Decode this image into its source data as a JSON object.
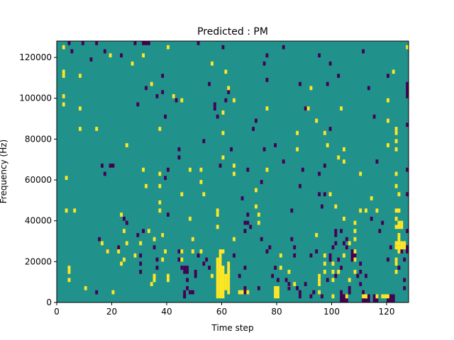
{
  "colors": {
    "background": "#21918c",
    "low": "#440154",
    "high": "#fde725",
    "axis": "#000000"
  },
  "chart_data": {
    "type": "heatmap",
    "title": "Predicted : PM",
    "xlabel": "Time step",
    "ylabel": "Frequency (Hz)",
    "xlim": [
      0,
      128
    ],
    "ylim": [
      0,
      128000
    ],
    "xticks": [
      0,
      20,
      40,
      60,
      80,
      100,
      120
    ],
    "xtick_labels": [
      "0",
      "20",
      "40",
      "60",
      "80",
      "100",
      "120"
    ],
    "yticks": [
      0,
      20000,
      40000,
      60000,
      80000,
      100000,
      120000
    ],
    "ytick_labels": [
      "0",
      "20000",
      "40000",
      "60000",
      "80000",
      "100000",
      "120000"
    ],
    "colormap": "viridis",
    "grid": false,
    "cell_size": {
      "time_steps": 1,
      "frequency_hz": 2000
    },
    "background_level": "mid",
    "high_cells": [
      [
        2,
        96
      ],
      [
        2,
        100
      ],
      [
        2,
        110
      ],
      [
        2,
        112
      ],
      [
        2,
        124
      ],
      [
        3,
        44
      ],
      [
        3,
        60
      ],
      [
        4,
        16
      ],
      [
        4,
        14
      ],
      [
        4,
        10
      ],
      [
        6,
        44
      ],
      [
        8,
        84
      ],
      [
        8,
        110
      ],
      [
        10,
        6
      ],
      [
        14,
        84
      ],
      [
        16,
        28
      ],
      [
        18,
        24
      ],
      [
        19,
        120
      ],
      [
        20,
        4
      ],
      [
        23,
        42
      ],
      [
        22,
        24
      ],
      [
        23,
        18
      ],
      [
        24,
        20
      ],
      [
        24,
        34
      ],
      [
        25,
        28
      ],
      [
        25,
        76
      ],
      [
        27,
        116
      ],
      [
        28,
        22
      ],
      [
        30,
        28
      ],
      [
        31,
        120
      ],
      [
        31,
        64
      ],
      [
        32,
        56
      ],
      [
        33,
        34
      ],
      [
        34,
        106
      ],
      [
        35,
        12
      ],
      [
        35,
        10
      ],
      [
        35,
        30
      ],
      [
        37,
        84
      ],
      [
        37,
        62
      ],
      [
        37,
        56
      ],
      [
        37,
        48
      ],
      [
        37,
        44
      ],
      [
        38,
        32
      ],
      [
        38,
        20
      ],
      [
        39,
        24
      ],
      [
        40,
        12
      ],
      [
        40,
        10
      ],
      [
        40,
        124
      ],
      [
        42,
        100
      ],
      [
        45,
        98
      ],
      [
        45,
        24
      ],
      [
        45,
        20
      ],
      [
        45,
        52
      ],
      [
        48,
        40
      ],
      [
        48,
        64
      ],
      [
        49,
        30
      ],
      [
        49,
        24
      ],
      [
        52,
        64
      ],
      [
        52,
        24
      ],
      [
        52,
        58
      ],
      [
        53,
        52
      ],
      [
        56,
        116
      ],
      [
        56,
        12
      ],
      [
        58,
        44
      ],
      [
        58,
        42
      ],
      [
        58,
        36
      ],
      [
        60,
        92
      ],
      [
        60,
        82
      ],
      [
        60,
        70
      ],
      [
        60,
        24
      ],
      [
        61,
        112
      ],
      [
        62,
        104
      ],
      [
        64,
        98
      ],
      [
        64,
        66
      ],
      [
        64,
        62
      ],
      [
        64,
        30
      ],
      [
        66,
        4
      ],
      [
        67,
        4
      ],
      [
        69,
        4
      ],
      [
        72,
        54
      ],
      [
        72,
        46
      ],
      [
        73,
        42
      ],
      [
        73,
        38
      ],
      [
        76,
        94
      ],
      [
        76,
        64
      ],
      [
        81,
        22
      ],
      [
        81,
        16
      ],
      [
        84,
        14
      ],
      [
        86,
        8
      ],
      [
        87,
        74
      ],
      [
        87,
        82
      ],
      [
        91,
        94
      ],
      [
        92,
        104
      ],
      [
        94,
        88
      ],
      [
        94,
        32
      ],
      [
        95,
        12
      ],
      [
        95,
        10
      ],
      [
        95,
        8
      ],
      [
        95,
        4
      ],
      [
        97,
        14
      ],
      [
        97,
        18
      ],
      [
        97,
        22
      ],
      [
        99,
        52
      ],
      [
        100,
        14
      ],
      [
        100,
        10
      ],
      [
        100,
        18
      ],
      [
        101,
        46
      ],
      [
        102,
        70
      ],
      [
        102,
        14
      ],
      [
        103,
        94
      ],
      [
        104,
        74
      ],
      [
        104,
        40
      ],
      [
        104,
        68
      ],
      [
        104,
        22
      ],
      [
        105,
        2
      ],
      [
        106,
        28
      ],
      [
        106,
        10
      ],
      [
        108,
        38
      ],
      [
        108,
        34
      ],
      [
        108,
        30
      ],
      [
        108,
        24
      ],
      [
        108,
        20
      ],
      [
        108,
        14
      ],
      [
        110,
        44
      ],
      [
        110,
        62
      ],
      [
        112,
        44
      ],
      [
        112,
        2
      ],
      [
        114,
        50
      ],
      [
        116,
        44
      ],
      [
        116,
        2
      ],
      [
        118,
        2
      ],
      [
        120,
        98
      ],
      [
        120,
        88
      ],
      [
        120,
        76
      ],
      [
        122,
        112
      ],
      [
        123,
        84
      ],
      [
        123,
        82
      ],
      [
        123,
        78
      ],
      [
        123,
        74
      ],
      [
        123,
        62
      ],
      [
        123,
        56
      ],
      [
        123,
        44
      ],
      [
        123,
        40
      ],
      [
        123,
        36
      ],
      [
        123,
        28
      ],
      [
        123,
        26
      ],
      [
        123,
        20
      ],
      [
        123,
        18
      ],
      [
        123,
        14
      ],
      [
        124,
        52
      ],
      [
        124,
        44
      ],
      [
        124,
        38
      ],
      [
        124,
        36
      ],
      [
        124,
        28
      ],
      [
        124,
        26
      ],
      [
        124,
        24
      ],
      [
        127,
        124
      ],
      [
        8,
        94
      ],
      [
        97,
        82
      ],
      [
        98,
        76
      ]
    ],
    "high_runs": [
      [
        58,
        2,
        22
      ],
      [
        59,
        2,
        26
      ],
      [
        60,
        2,
        18
      ],
      [
        61,
        6,
        14
      ],
      [
        62,
        4,
        20
      ],
      [
        62,
        12,
        16
      ],
      [
        34,
        8,
        10
      ],
      [
        35,
        10,
        14
      ],
      [
        79,
        2,
        8
      ],
      [
        80,
        2,
        8
      ],
      [
        111,
        2,
        4
      ],
      [
        112,
        2,
        4
      ],
      [
        119,
        2,
        4
      ],
      [
        120,
        2,
        4
      ],
      [
        84,
        8,
        8
      ],
      [
        124,
        30,
        34
      ],
      [
        125,
        36,
        40
      ],
      [
        125,
        26,
        30
      ],
      [
        126,
        26,
        30
      ],
      [
        100,
        2,
        4
      ]
    ],
    "low_cells": [
      [
        4,
        126
      ],
      [
        5,
        122
      ],
      [
        9,
        126
      ],
      [
        12,
        118
      ],
      [
        14,
        126
      ],
      [
        14,
        4
      ],
      [
        15,
        30
      ],
      [
        16,
        66
      ],
      [
        17,
        62
      ],
      [
        17,
        122
      ],
      [
        18,
        24
      ],
      [
        19,
        66
      ],
      [
        20,
        66
      ],
      [
        22,
        26
      ],
      [
        23,
        120
      ],
      [
        24,
        40
      ],
      [
        25,
        38
      ],
      [
        28,
        126
      ],
      [
        29,
        96
      ],
      [
        29,
        32
      ],
      [
        30,
        18
      ],
      [
        30,
        14
      ],
      [
        30,
        22
      ],
      [
        31,
        126
      ],
      [
        31,
        34
      ],
      [
        32,
        126
      ],
      [
        32,
        104
      ],
      [
        33,
        126
      ],
      [
        35,
        26
      ],
      [
        36,
        20
      ],
      [
        36,
        16
      ],
      [
        36,
        100
      ],
      [
        38,
        110
      ],
      [
        38,
        102
      ],
      [
        38,
        32
      ],
      [
        39,
        90
      ],
      [
        39,
        60
      ],
      [
        40,
        42
      ],
      [
        40,
        64
      ],
      [
        43,
        98
      ],
      [
        44,
        70
      ],
      [
        44,
        24
      ],
      [
        44,
        20
      ],
      [
        44,
        74
      ],
      [
        45,
        16
      ],
      [
        46,
        4
      ],
      [
        46,
        2
      ],
      [
        47,
        6
      ],
      [
        46,
        2
      ],
      [
        47,
        10
      ],
      [
        48,
        4
      ],
      [
        49,
        4
      ],
      [
        50,
        14
      ],
      [
        50,
        12
      ],
      [
        51,
        126
      ],
      [
        51,
        22
      ],
      [
        53,
        78
      ],
      [
        53,
        18
      ],
      [
        54,
        20
      ],
      [
        55,
        16
      ],
      [
        55,
        106
      ],
      [
        57,
        96
      ],
      [
        57,
        94
      ],
      [
        58,
        90
      ],
      [
        59,
        66
      ],
      [
        60,
        124
      ],
      [
        61,
        98
      ],
      [
        62,
        102
      ],
      [
        63,
        74
      ],
      [
        64,
        22
      ],
      [
        66,
        12
      ],
      [
        67,
        50
      ],
      [
        68,
        34
      ],
      [
        68,
        16
      ],
      [
        68,
        4
      ],
      [
        68,
        6
      ],
      [
        69,
        64
      ],
      [
        69,
        42
      ],
      [
        70,
        36
      ],
      [
        71,
        84
      ],
      [
        72,
        88
      ],
      [
        73,
        6
      ],
      [
        74,
        58
      ],
      [
        74,
        30
      ],
      [
        75,
        74
      ],
      [
        76,
        24
      ],
      [
        77,
        26
      ],
      [
        78,
        12
      ],
      [
        79,
        76
      ],
      [
        79,
        16
      ],
      [
        80,
        10
      ],
      [
        82,
        124
      ],
      [
        82,
        68
      ],
      [
        83,
        10
      ],
      [
        84,
        8
      ],
      [
        84,
        6
      ],
      [
        85,
        44
      ],
      [
        85,
        30
      ],
      [
        86,
        26
      ],
      [
        86,
        22
      ],
      [
        87,
        6
      ],
      [
        88,
        106
      ],
      [
        88,
        4
      ],
      [
        88,
        2
      ],
      [
        89,
        64
      ],
      [
        90,
        94
      ],
      [
        90,
        8
      ],
      [
        92,
        22
      ],
      [
        92,
        2
      ],
      [
        93,
        4
      ],
      [
        94,
        24
      ],
      [
        95,
        120
      ],
      [
        95,
        12
      ],
      [
        96,
        2
      ],
      [
        97,
        66
      ],
      [
        97,
        52
      ],
      [
        98,
        106
      ],
      [
        98,
        10
      ],
      [
        99,
        84
      ],
      [
        99,
        116
      ],
      [
        100,
        26
      ],
      [
        101,
        12
      ],
      [
        101,
        28
      ],
      [
        102,
        20
      ],
      [
        102,
        110
      ],
      [
        103,
        34
      ],
      [
        104,
        28
      ],
      [
        105,
        26
      ],
      [
        105,
        30
      ],
      [
        106,
        4
      ],
      [
        106,
        6
      ],
      [
        108,
        22
      ],
      [
        109,
        12
      ],
      [
        110,
        8
      ],
      [
        110,
        14
      ],
      [
        111,
        122
      ],
      [
        111,
        4
      ],
      [
        112,
        12
      ],
      [
        113,
        104
      ],
      [
        114,
        40
      ],
      [
        115,
        90
      ],
      [
        116,
        68
      ],
      [
        117,
        34
      ],
      [
        118,
        38
      ],
      [
        118,
        2
      ],
      [
        120,
        20
      ],
      [
        120,
        110
      ],
      [
        121,
        2
      ],
      [
        124,
        16
      ],
      [
        125,
        24
      ],
      [
        126,
        6
      ],
      [
        126,
        10
      ],
      [
        127,
        86
      ],
      [
        127,
        64
      ],
      [
        127,
        52
      ],
      [
        126,
        20
      ],
      [
        128,
        24
      ],
      [
        128,
        80
      ],
      [
        128,
        110
      ],
      [
        127,
        34
      ],
      [
        75,
        116
      ],
      [
        76,
        120
      ],
      [
        76,
        108
      ],
      [
        95,
        62
      ],
      [
        96,
        46
      ],
      [
        121,
        26
      ],
      [
        88,
        56
      ],
      [
        95,
        52
      ],
      [
        110,
        18
      ],
      [
        103,
        16
      ]
    ],
    "low_runs": [
      [
        68,
        38,
        40
      ],
      [
        69,
        38,
        40
      ],
      [
        107,
        20,
        26
      ],
      [
        99,
        20,
        24
      ],
      [
        103,
        0,
        6
      ],
      [
        104,
        0,
        4
      ],
      [
        105,
        0,
        4
      ],
      [
        111,
        0,
        4
      ],
      [
        112,
        0,
        4
      ],
      [
        113,
        0,
        4
      ],
      [
        127,
        100,
        108
      ],
      [
        127,
        24,
        28
      ],
      [
        115,
        0,
        4
      ],
      [
        116,
        0,
        4
      ],
      [
        120,
        0,
        4
      ],
      [
        121,
        0,
        4
      ],
      [
        122,
        0,
        4
      ],
      [
        46,
        14,
        18
      ],
      [
        47,
        14,
        18
      ],
      [
        101,
        32,
        36
      ]
    ]
  }
}
